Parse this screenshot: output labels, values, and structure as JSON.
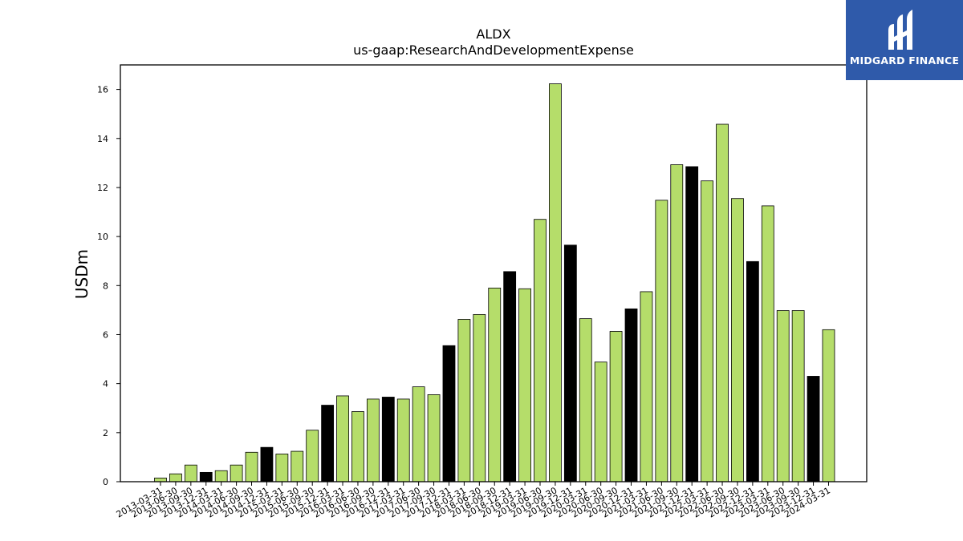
{
  "chart_data": {
    "type": "bar",
    "title": "ALDX",
    "subtitle": "us-gaap:ResearchAndDevelopmentExpense",
    "xlabel": "",
    "ylabel": "USDm",
    "ylim": [
      0,
      17
    ],
    "yticks": [
      0,
      2,
      4,
      6,
      8,
      10,
      12,
      14,
      16
    ],
    "grid": false,
    "colors": {
      "quarter": "#b5dd6a",
      "year_end": "#000000",
      "edge": "#000000"
    },
    "categories": [
      "2013-03-31",
      "2013-06-30",
      "2013-09-30",
      "2013-12-31",
      "2014-03-31",
      "2014-06-30",
      "2014-09-30",
      "2014-12-31",
      "2015-03-31",
      "2015-06-30",
      "2015-09-30",
      "2015-12-31",
      "2016-03-31",
      "2016-06-30",
      "2016-09-30",
      "2016-12-31",
      "2017-03-31",
      "2017-06-30",
      "2017-09-30",
      "2017-12-31",
      "2018-03-31",
      "2018-06-30",
      "2018-09-30",
      "2018-12-31",
      "2019-03-31",
      "2019-06-30",
      "2019-09-30",
      "2019-12-31",
      "2020-03-31",
      "2020-06-30",
      "2020-09-30",
      "2020-12-31",
      "2021-03-31",
      "2021-06-30",
      "2021-09-30",
      "2021-12-31",
      "2022-03-31",
      "2022-06-30",
      "2022-09-30",
      "2022-12-31",
      "2023-03-31",
      "2023-06-30",
      "2023-09-30",
      "2023-12-31",
      "2024-03-31"
    ],
    "values": [
      0.15,
      0.32,
      0.68,
      0.38,
      0.45,
      0.68,
      1.2,
      1.4,
      1.13,
      1.24,
      2.1,
      3.12,
      3.5,
      2.86,
      3.37,
      3.45,
      3.37,
      3.87,
      3.55,
      5.55,
      6.62,
      6.82,
      7.9,
      8.57,
      7.87,
      10.7,
      16.23,
      9.65,
      6.65,
      4.88,
      6.13,
      7.05,
      7.75,
      11.48,
      12.93,
      12.85,
      12.27,
      14.58,
      11.55,
      8.98,
      11.25,
      6.98,
      6.98,
      4.3,
      6.2
    ]
  },
  "logo": {
    "text": "MIDGARD FINANCE"
  }
}
